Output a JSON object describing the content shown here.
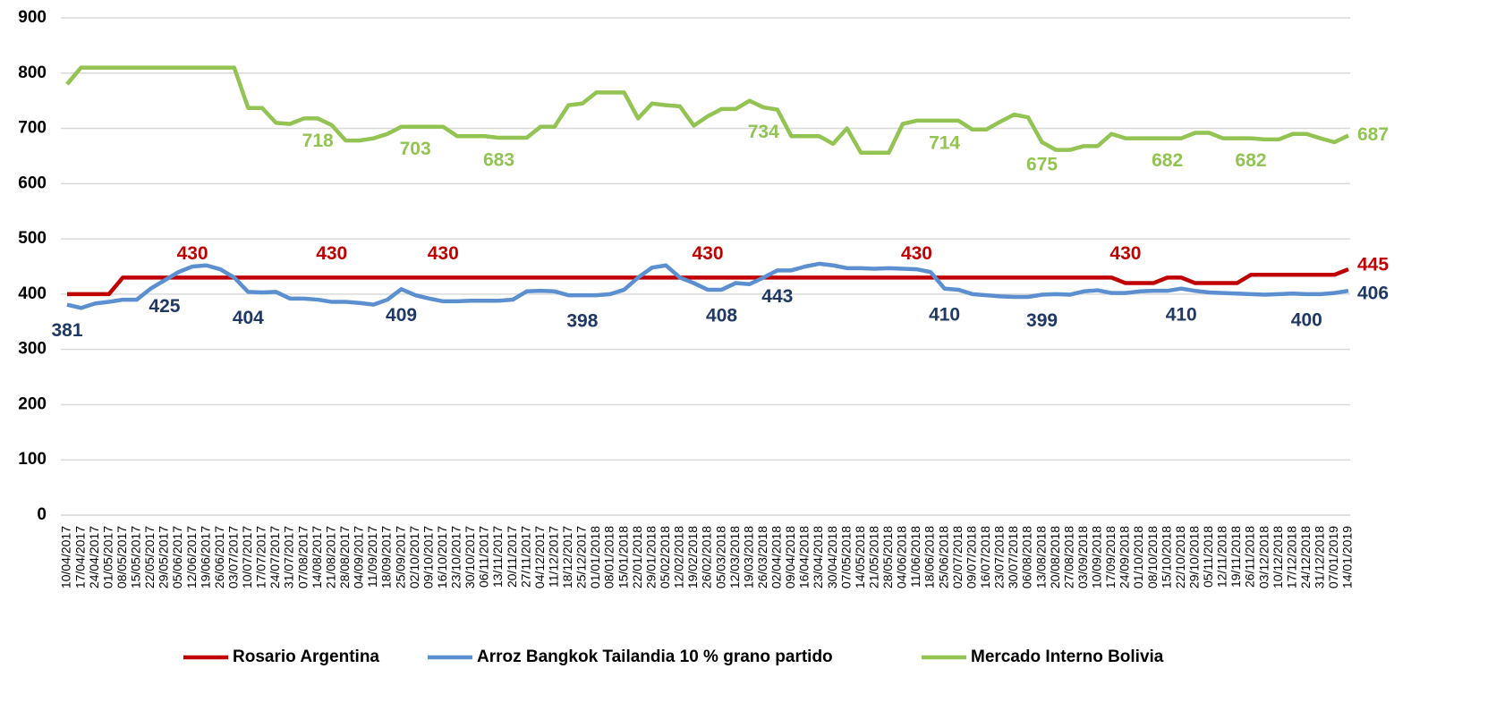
{
  "chart_data": {
    "type": "line",
    "categories": [
      "10/04/2017",
      "17/04/2017",
      "24/04/2017",
      "01/05/2017",
      "08/05/2017",
      "15/05/2017",
      "22/05/2017",
      "29/05/2017",
      "05/06/2017",
      "12/06/2017",
      "19/06/2017",
      "26/06/2017",
      "03/07/2017",
      "10/07/2017",
      "17/07/2017",
      "24/07/2017",
      "31/07/2017",
      "07/08/2017",
      "14/08/2017",
      "21/08/2017",
      "28/08/2017",
      "04/09/2017",
      "11/09/2017",
      "18/09/2017",
      "25/09/2017",
      "02/10/2017",
      "09/10/2017",
      "16/10/2017",
      "23/10/2017",
      "30/10/2017",
      "06/11/2017",
      "13/11/2017",
      "20/11/2017",
      "27/11/2017",
      "04/12/2017",
      "11/12/2017",
      "18/12/2017",
      "25/12/2017",
      "01/01/2018",
      "08/01/2018",
      "15/01/2018",
      "22/01/2018",
      "29/01/2018",
      "05/02/2018",
      "12/02/2018",
      "19/02/2018",
      "26/02/2018",
      "05/03/2018",
      "12/03/2018",
      "19/03/2018",
      "26/03/2018",
      "02/04/2018",
      "09/04/2018",
      "16/04/2018",
      "23/04/2018",
      "30/04/2018",
      "07/05/2018",
      "14/05/2018",
      "21/05/2018",
      "28/05/2018",
      "04/06/2018",
      "11/06/2018",
      "18/06/2018",
      "25/06/2018",
      "02/07/2018",
      "09/07/2018",
      "16/07/2018",
      "23/07/2018",
      "30/07/2018",
      "06/08/2018",
      "13/08/2018",
      "20/08/2018",
      "27/08/2018",
      "03/09/2018",
      "10/09/2018",
      "17/09/2018",
      "24/09/2018",
      "01/10/2018",
      "08/10/2018",
      "15/10/2018",
      "22/10/2018",
      "29/10/2018",
      "05/11/2018",
      "12/11/2018",
      "19/11/2018",
      "26/11/2018",
      "03/12/2018",
      "10/12/2018",
      "17/12/2018",
      "24/12/2018",
      "31/12/2018",
      "07/01/2019",
      "14/01/2019"
    ],
    "series": [
      {
        "name": "Rosario Argentina",
        "color": "#c00000",
        "label_color": "#c00000",
        "values": [
          400,
          400,
          400,
          400,
          430,
          430,
          430,
          430,
          430,
          430,
          430,
          430,
          430,
          430,
          430,
          430,
          430,
          430,
          430,
          430,
          430,
          430,
          430,
          430,
          430,
          430,
          430,
          430,
          430,
          430,
          430,
          430,
          430,
          430,
          430,
          430,
          430,
          430,
          430,
          430,
          430,
          430,
          430,
          430,
          430,
          430,
          430,
          430,
          430,
          430,
          430,
          430,
          430,
          430,
          430,
          430,
          430,
          430,
          430,
          430,
          430,
          430,
          430,
          430,
          430,
          430,
          430,
          430,
          430,
          430,
          430,
          430,
          430,
          430,
          430,
          430,
          420,
          420,
          420,
          430,
          430,
          420,
          420,
          420,
          420,
          435,
          435,
          435,
          435,
          435,
          435,
          435,
          445
        ],
        "data_labels": [
          {
            "x": "12/06/2017",
            "value": 430
          },
          {
            "x": "21/08/2017",
            "value": 430
          },
          {
            "x": "16/10/2017",
            "value": 430
          },
          {
            "x": "26/02/2018",
            "value": 430
          },
          {
            "x": "11/06/2018",
            "value": 430
          },
          {
            "x": "24/09/2018",
            "value": 430
          },
          {
            "x": "14/01/2019",
            "value": 445
          }
        ]
      },
      {
        "name": "Arroz Bangkok Tailandia 10 % grano partido",
        "color": "#5b8fd0",
        "label_color": "#1f3864",
        "values": [
          381,
          375,
          383,
          386,
          390,
          390,
          410,
          425,
          440,
          450,
          452,
          445,
          430,
          404,
          403,
          404,
          392,
          392,
          390,
          386,
          386,
          384,
          381,
          390,
          409,
          398,
          392,
          387,
          387,
          388,
          388,
          388,
          390,
          405,
          406,
          405,
          398,
          398,
          398,
          400,
          408,
          430,
          448,
          452,
          430,
          420,
          408,
          408,
          420,
          418,
          430,
          443,
          443,
          450,
          455,
          452,
          447,
          447,
          446,
          447,
          446,
          445,
          440,
          410,
          408,
          400,
          398,
          396,
          395,
          395,
          399,
          400,
          399,
          405,
          407,
          402,
          402,
          405,
          406,
          406,
          410,
          406,
          403,
          402,
          401,
          400,
          399,
          400,
          401,
          400,
          400,
          402,
          406
        ],
        "data_labels": [
          {
            "x": "10/04/2017",
            "value": 381
          },
          {
            "x": "29/05/2017",
            "value": 425
          },
          {
            "x": "10/07/2017",
            "value": 404
          },
          {
            "x": "25/09/2017",
            "value": 409
          },
          {
            "x": "25/12/2017",
            "value": 398
          },
          {
            "x": "05/03/2018",
            "value": 408
          },
          {
            "x": "02/04/2018",
            "value": 443
          },
          {
            "x": "25/06/2018",
            "value": 410
          },
          {
            "x": "13/08/2018",
            "value": 399
          },
          {
            "x": "22/10/2018",
            "value": 410
          },
          {
            "x": "24/12/2018",
            "value": 400
          },
          {
            "x": "14/01/2019",
            "value": 406
          }
        ]
      },
      {
        "name": "Mercado Interno Bolivia",
        "color": "#92c353",
        "label_color": "#92c353",
        "values": [
          780,
          810,
          810,
          810,
          810,
          810,
          810,
          810,
          810,
          810,
          810,
          810,
          810,
          737,
          737,
          710,
          708,
          718,
          718,
          706,
          678,
          678,
          682,
          690,
          703,
          703,
          703,
          703,
          686,
          686,
          686,
          683,
          683,
          683,
          703,
          703,
          742,
          745,
          765,
          765,
          765,
          718,
          745,
          742,
          740,
          705,
          722,
          735,
          735,
          750,
          738,
          734,
          686,
          686,
          686,
          672,
          700,
          656,
          656,
          656,
          708,
          714,
          714,
          714,
          714,
          698,
          698,
          712,
          725,
          720,
          675,
          661,
          661,
          668,
          668,
          690,
          682,
          682,
          682,
          682,
          682,
          692,
          692,
          682,
          682,
          682,
          680,
          680,
          690,
          690,
          682,
          675,
          687
        ],
        "data_labels": [
          {
            "x": "14/08/2017",
            "value": 718
          },
          {
            "x": "02/10/2017",
            "value": 703
          },
          {
            "x": "13/11/2017",
            "value": 683
          },
          {
            "x": "26/03/2018",
            "value": 734
          },
          {
            "x": "25/06/2018",
            "value": 714
          },
          {
            "x": "13/08/2018",
            "value": 675
          },
          {
            "x": "15/10/2018",
            "value": 682
          },
          {
            "x": "26/11/2018",
            "value": 682
          },
          {
            "x": "14/01/2019",
            "value": 687
          }
        ]
      }
    ],
    "ylim": [
      0,
      900
    ],
    "yticks": [
      0,
      100,
      200,
      300,
      400,
      500,
      600,
      700,
      800,
      900
    ],
    "grid": true,
    "legend": "bottom"
  }
}
